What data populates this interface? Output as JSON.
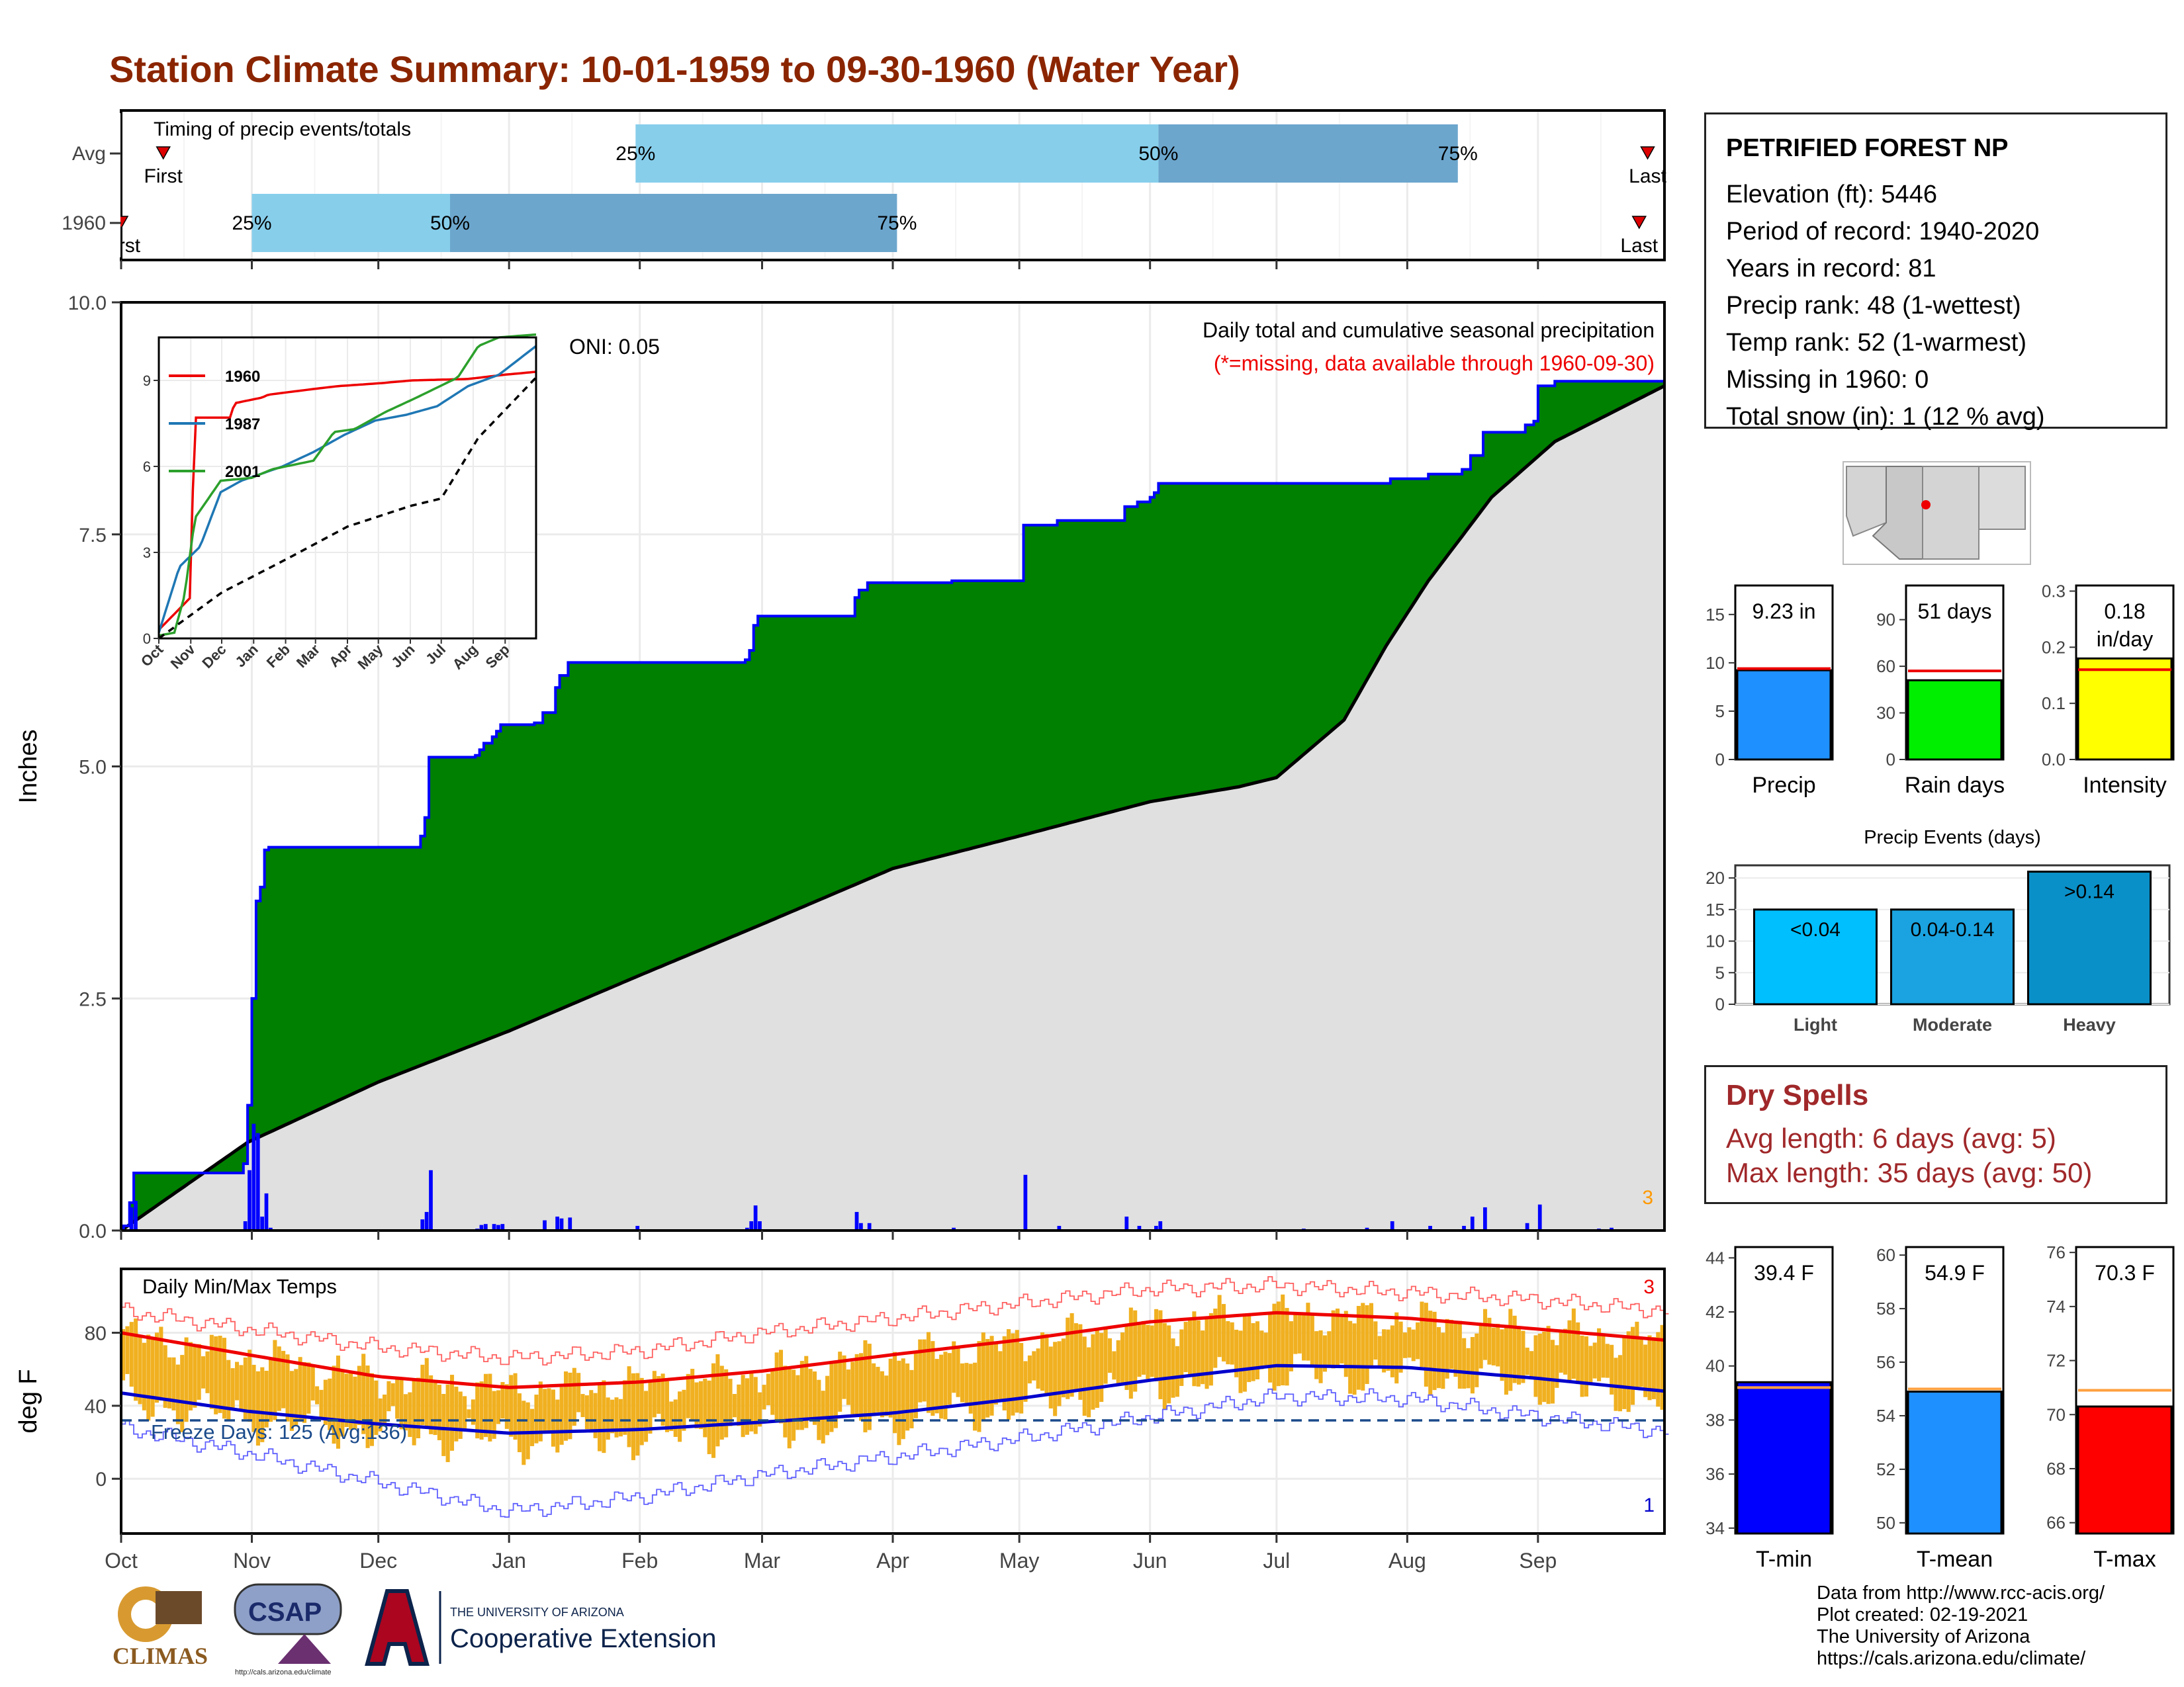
{
  "title": "Station Climate Summary: 10-01-1959 to 09-30-1960 (Water Year)",
  "station": {
    "name": "PETRIFIED FOREST NP",
    "lines": [
      "Elevation (ft): 5446",
      "Period of record: 1940-2020",
      "Years in record: 81",
      "Precip rank: 48 (1-wettest)",
      "Temp rank: 52 (1-warmest)",
      "Missing in 1960: 0",
      "Total snow (in): 1 (12 % avg)"
    ]
  },
  "dry_spells": {
    "title": "Dry Spells",
    "avg_line": "Avg length: 6 days (avg: 5)",
    "max_line": "Max length: 35 days (avg: 50)"
  },
  "credits": [
    "Data from http://www.rcc-acis.org/",
    "Plot created: 02-19-2021",
    "The University of Arizona",
    "https://cals.arizona.edu/climate/"
  ],
  "logos": {
    "climas": "CLIMAS",
    "csap": "CSAP",
    "csap_url": "http://cals.arizona.edu/climate",
    "ua_small": "THE UNIVERSITY OF ARIZONA",
    "ua_big": "Cooperative Extension"
  },
  "colors": {
    "title": "#8b2500",
    "precip_fill": "#008000",
    "normal_fill": "#e0e0e0",
    "obs_line": "#0000ff",
    "red": "#ee0000",
    "orange_bars": "#f0b020",
    "light_blue": "#87ceeb",
    "mid_blue": "#6ca6cd"
  },
  "chart_data": [
    {
      "type": "bar",
      "name": "timing",
      "title": "Timing of precip events/totals",
      "rows": [
        {
          "label": "Avg",
          "first": "First",
          "last": "Last",
          "first_day": 10,
          "p25_day": 122,
          "p50_day": 246,
          "p75_day": 317,
          "last_day": 362
        },
        {
          "label": "1960",
          "first": "First",
          "last": "Last",
          "first_day": 0,
          "p25_day": 31,
          "p50_day": 78,
          "p75_day": 184,
          "last_day": 360
        }
      ],
      "marker_labels": [
        "25%",
        "50%",
        "75%"
      ],
      "xlim": [
        0,
        366
      ]
    },
    {
      "type": "area",
      "name": "precip",
      "title": "Daily total and cumulative seasonal precipitation",
      "subtitle": "(*=missing, data available through 1960-09-30)",
      "annotation": "ONI: 0.05",
      "ylabel": "Inches",
      "ylim": [
        0,
        10
      ],
      "yticks": [
        0,
        2.5,
        5,
        7.5,
        10
      ],
      "ytick_labels": [
        "0.0",
        "2.5",
        "5.0",
        "7.5",
        "10.0"
      ],
      "corner_count": "3",
      "months": [
        "Oct",
        "Nov",
        "Dec",
        "Jan",
        "Feb",
        "Mar",
        "Apr",
        "May",
        "Jun",
        "Jul",
        "Aug",
        "Sep"
      ],
      "month_days": [
        0,
        31,
        61,
        92,
        123,
        152,
        183,
        213,
        244,
        274,
        305,
        336
      ],
      "cumulative_steps": [
        [
          0,
          0.05
        ],
        [
          2,
          0.3
        ],
        [
          3,
          0.62
        ],
        [
          29,
          0.72
        ],
        [
          30,
          1.35
        ],
        [
          31,
          2.5
        ],
        [
          32,
          3.55
        ],
        [
          33,
          3.7
        ],
        [
          34,
          4.1
        ],
        [
          35,
          4.13
        ],
        [
          70,
          4.13
        ],
        [
          71,
          4.25
        ],
        [
          72,
          4.45
        ],
        [
          73,
          5.1
        ],
        [
          84,
          5.12
        ],
        [
          85,
          5.18
        ],
        [
          86,
          5.25
        ],
        [
          88,
          5.32
        ],
        [
          89,
          5.38
        ],
        [
          90,
          5.45
        ],
        [
          98,
          5.47
        ],
        [
          100,
          5.58
        ],
        [
          103,
          5.85
        ],
        [
          104,
          5.98
        ],
        [
          106,
          6.12
        ],
        [
          147,
          6.12
        ],
        [
          148,
          6.15
        ],
        [
          149,
          6.25
        ],
        [
          150,
          6.52
        ],
        [
          151,
          6.62
        ],
        [
          173,
          6.62
        ],
        [
          174,
          6.82
        ],
        [
          175,
          6.9
        ],
        [
          177,
          6.98
        ],
        [
          196,
          6.98
        ],
        [
          197,
          7.0
        ],
        [
          213,
          7.0
        ],
        [
          214,
          7.6
        ],
        [
          222,
          7.65
        ],
        [
          237,
          7.65
        ],
        [
          238,
          7.8
        ],
        [
          241,
          7.85
        ],
        [
          244,
          7.9
        ],
        [
          245,
          7.95
        ],
        [
          246,
          8.05
        ],
        [
          300,
          8.05
        ],
        [
          301,
          8.1
        ],
        [
          310,
          8.15
        ],
        [
          318,
          8.2
        ],
        [
          320,
          8.35
        ],
        [
          323,
          8.6
        ],
        [
          333,
          8.68
        ],
        [
          335,
          8.72
        ],
        [
          336,
          9.1
        ],
        [
          340,
          9.15
        ],
        [
          366,
          9.23
        ]
      ],
      "normal_points": [
        [
          0,
          0
        ],
        [
          30,
          0.95
        ],
        [
          61,
          1.6
        ],
        [
          92,
          2.15
        ],
        [
          123,
          2.75
        ],
        [
          152,
          3.3
        ],
        [
          183,
          3.9
        ],
        [
          213,
          4.25
        ],
        [
          244,
          4.62
        ],
        [
          265,
          4.78
        ],
        [
          274,
          4.88
        ],
        [
          290,
          5.5
        ],
        [
          300,
          6.3
        ],
        [
          310,
          7.0
        ],
        [
          325,
          7.9
        ],
        [
          340,
          8.5
        ],
        [
          366,
          9.1
        ]
      ],
      "daily_bars": [
        [
          0,
          0.05
        ],
        [
          2,
          0.25
        ],
        [
          3,
          0.32
        ],
        [
          29,
          0.1
        ],
        [
          30,
          0.65
        ],
        [
          31,
          1.15
        ],
        [
          32,
          1.05
        ],
        [
          33,
          0.15
        ],
        [
          34,
          0.4
        ],
        [
          35,
          0.03
        ],
        [
          71,
          0.12
        ],
        [
          72,
          0.2
        ],
        [
          73,
          0.65
        ],
        [
          84,
          0.02
        ],
        [
          85,
          0.06
        ],
        [
          86,
          0.07
        ],
        [
          88,
          0.07
        ],
        [
          89,
          0.06
        ],
        [
          90,
          0.07
        ],
        [
          100,
          0.11
        ],
        [
          103,
          0.15
        ],
        [
          104,
          0.13
        ],
        [
          106,
          0.14
        ],
        [
          122,
          0.05
        ],
        [
          148,
          0.03
        ],
        [
          149,
          0.1
        ],
        [
          150,
          0.27
        ],
        [
          151,
          0.1
        ],
        [
          174,
          0.2
        ],
        [
          175,
          0.08
        ],
        [
          177,
          0.08
        ],
        [
          197,
          0.03
        ],
        [
          214,
          0.6
        ],
        [
          222,
          0.05
        ],
        [
          238,
          0.15
        ],
        [
          241,
          0.05
        ],
        [
          245,
          0.05
        ],
        [
          246,
          0.1
        ],
        [
          280,
          0.02
        ],
        [
          295,
          0.03
        ],
        [
          301,
          0.1
        ],
        [
          310,
          0.05
        ],
        [
          318,
          0.05
        ],
        [
          320,
          0.15
        ],
        [
          323,
          0.25
        ],
        [
          333,
          0.08
        ],
        [
          336,
          0.28
        ],
        [
          350,
          0.02
        ],
        [
          353,
          0.03
        ]
      ],
      "inset": {
        "type": "line",
        "xlabels": [
          "Oct",
          "Nov",
          "Dec",
          "Jan",
          "Feb",
          "Mar",
          "Apr",
          "May",
          "Jun",
          "Jul",
          "Aug",
          "Sep"
        ],
        "yticks": [
          0,
          3,
          6,
          9
        ],
        "ylim": [
          0,
          10.5
        ],
        "series": [
          {
            "name": "1960",
            "color": "#ee0000",
            "points": [
              [
                0,
                0.3
              ],
              [
                30,
                1.4
              ],
              [
                35,
                7.7
              ],
              [
                70,
                7.7
              ],
              [
                73,
                8.2
              ],
              [
                100,
                8.4
              ],
              [
                106,
                8.5
              ],
              [
                150,
                8.7
              ],
              [
                174,
                8.8
              ],
              [
                214,
                8.9
              ],
              [
                246,
                9.0
              ],
              [
                300,
                9.05
              ],
              [
                336,
                9.2
              ],
              [
                366,
                9.3
              ]
            ]
          },
          {
            "name": "1987",
            "color": "#1f77b4",
            "points": [
              [
                0,
                0.2
              ],
              [
                20,
                2.5
              ],
              [
                40,
                3.2
              ],
              [
                60,
                5.1
              ],
              [
                80,
                5.5
              ],
              [
                120,
                6.0
              ],
              [
                150,
                6.5
              ],
              [
                180,
                7.1
              ],
              [
                210,
                7.6
              ],
              [
                240,
                7.8
              ],
              [
                270,
                8.1
              ],
              [
                300,
                8.8
              ],
              [
                330,
                9.2
              ],
              [
                366,
                10.2
              ]
            ]
          },
          {
            "name": "2001",
            "color": "#2ca02c",
            "points": [
              [
                0,
                0.1
              ],
              [
                15,
                0.2
              ],
              [
                25,
                1.5
              ],
              [
                35,
                4.2
              ],
              [
                60,
                5.5
              ],
              [
                90,
                5.6
              ],
              [
                110,
                5.9
              ],
              [
                150,
                6.2
              ],
              [
                170,
                7.2
              ],
              [
                190,
                7.3
              ],
              [
                220,
                7.9
              ],
              [
                250,
                8.4
              ],
              [
                290,
                9.1
              ],
              [
                310,
                10.2
              ],
              [
                330,
                10.5
              ],
              [
                366,
                10.6
              ]
            ]
          },
          {
            "name": "",
            "color": "#000000",
            "dashed": true,
            "points": [
              [
                0,
                0
              ],
              [
                61,
                1.6
              ],
              [
                123,
                2.75
              ],
              [
                183,
                3.9
              ],
              [
                244,
                4.62
              ],
              [
                274,
                4.88
              ],
              [
                310,
                7.0
              ],
              [
                366,
                9.1
              ]
            ]
          }
        ]
      }
    },
    {
      "type": "bar",
      "name": "temps",
      "title": "Daily Min/Max Temps",
      "ylabel": "deg F",
      "ylim": [
        -30,
        115
      ],
      "yticks": [
        0,
        40,
        80
      ],
      "freeze_label": "Freeze Days: 125 (Avg:136)",
      "freeze_line": 32,
      "max_count": "3",
      "min_count": "1",
      "months": [
        "Oct",
        "Nov",
        "Dec",
        "Jan",
        "Feb",
        "Mar",
        "Apr",
        "May",
        "Jun",
        "Jul",
        "Aug",
        "Sep"
      ],
      "normal_max": [
        [
          0,
          80
        ],
        [
          30,
          68
        ],
        [
          61,
          56
        ],
        [
          92,
          50
        ],
        [
          123,
          53
        ],
        [
          152,
          59
        ],
        [
          183,
          68
        ],
        [
          213,
          76
        ],
        [
          244,
          86
        ],
        [
          274,
          91
        ],
        [
          305,
          88
        ],
        [
          336,
          82
        ],
        [
          366,
          76
        ]
      ],
      "normal_min": [
        [
          0,
          47
        ],
        [
          30,
          37
        ],
        [
          61,
          30
        ],
        [
          92,
          25
        ],
        [
          123,
          27
        ],
        [
          152,
          31
        ],
        [
          183,
          36
        ],
        [
          213,
          44
        ],
        [
          244,
          54
        ],
        [
          274,
          62
        ],
        [
          305,
          61
        ],
        [
          336,
          55
        ],
        [
          366,
          48
        ]
      ],
      "record_max": [
        [
          0,
          92
        ],
        [
          30,
          82
        ],
        [
          61,
          72
        ],
        [
          92,
          66
        ],
        [
          123,
          70
        ],
        [
          152,
          80
        ],
        [
          183,
          88
        ],
        [
          213,
          96
        ],
        [
          244,
          104
        ],
        [
          274,
          106
        ],
        [
          305,
          102
        ],
        [
          336,
          98
        ],
        [
          366,
          92
        ]
      ],
      "record_min": [
        [
          0,
          28
        ],
        [
          30,
          14
        ],
        [
          61,
          -2
        ],
        [
          92,
          -18
        ],
        [
          123,
          -10
        ],
        [
          152,
          2
        ],
        [
          183,
          12
        ],
        [
          213,
          22
        ],
        [
          244,
          34
        ],
        [
          274,
          45
        ],
        [
          305,
          44
        ],
        [
          336,
          34
        ],
        [
          366,
          26
        ]
      ]
    },
    {
      "type": "bar",
      "name": "precip_stats",
      "panels": [
        {
          "label": "Precip",
          "value_text": "9.23 in",
          "value": 9.23,
          "avg": 9.4,
          "ylim": [
            0,
            18
          ],
          "yticks": [
            0,
            5,
            10,
            15
          ],
          "color": "#1e90ff"
        },
        {
          "label": "Rain days",
          "value_text": "51 days",
          "value": 51,
          "avg": 57,
          "ylim": [
            0,
            112
          ],
          "yticks": [
            0,
            30,
            60,
            90
          ],
          "color": "#00ee00"
        },
        {
          "label": "Intensity",
          "value_text": "0.18 in/day",
          "value": 0.18,
          "avg": 0.16,
          "ylim": [
            0,
            0.31
          ],
          "yticks": [
            0.0,
            0.1,
            0.2,
            0.3
          ],
          "ytick_labels": [
            "0.0",
            "0.1",
            "0.2",
            "0.3"
          ],
          "color": "#ffff00"
        }
      ]
    },
    {
      "type": "bar",
      "name": "precip_events",
      "title": "Precip Events (days)",
      "categories": [
        "Light",
        "Moderate",
        "Heavy"
      ],
      "bar_labels": [
        "<0.04",
        "0.04-0.14",
        ">0.14"
      ],
      "values": [
        15,
        15,
        21
      ],
      "ylim": [
        0,
        22
      ],
      "yticks": [
        0,
        5,
        10,
        15,
        20
      ],
      "colors": [
        "#00bfff",
        "#1aa3e0",
        "#0a90c8"
      ]
    },
    {
      "type": "bar",
      "name": "temp_stats",
      "panels": [
        {
          "label": "T-min",
          "value_text": "39.4 F",
          "value": 39.4,
          "avg": 39.2,
          "ylim": [
            33.8,
            44.4
          ],
          "yticks": [
            34,
            36,
            38,
            40,
            42,
            44
          ],
          "color": "#0000ff"
        },
        {
          "label": "T-mean",
          "value_text": "54.9 F",
          "value": 54.9,
          "avg": 55.0,
          "ylim": [
            49.6,
            60.3
          ],
          "yticks": [
            50,
            52,
            54,
            56,
            58,
            60
          ],
          "color": "#1e90ff"
        },
        {
          "label": "T-max",
          "value_text": "70.3 F",
          "value": 70.3,
          "avg": 70.9,
          "ylim": [
            65.6,
            76.2
          ],
          "yticks": [
            66,
            68,
            70,
            72,
            74,
            76
          ],
          "color": "#ff0000"
        }
      ]
    }
  ]
}
